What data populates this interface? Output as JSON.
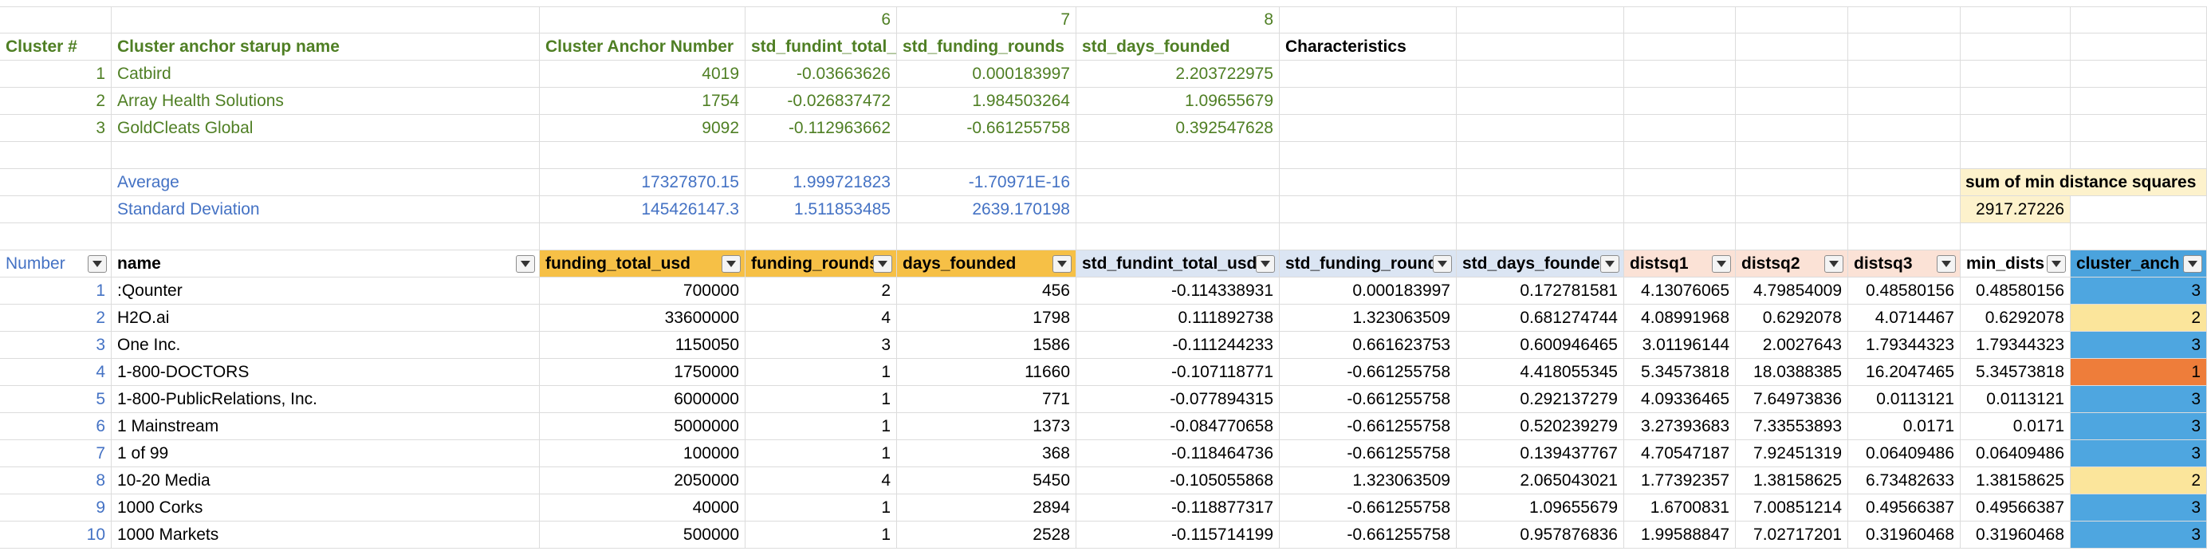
{
  "col_index_row": [
    "6",
    "7",
    "8"
  ],
  "cluster_header": {
    "cluster_no": "Cluster #",
    "anchor_name": "Cluster anchor starup name",
    "anchor_number": "Cluster Anchor Number",
    "std_funding_total": "std_fundint_total_(",
    "std_funding_rounds": "std_funding_rounds",
    "std_days_founded": "std_days_founded",
    "characteristics": "Characteristics"
  },
  "clusters": [
    {
      "no": "1",
      "name": "Catbird",
      "anchor": "4019",
      "sft": "-0.03663626",
      "sfr": "0.000183997",
      "sdf": "2.203722975"
    },
    {
      "no": "2",
      "name": "Array Health Solutions",
      "anchor": "1754",
      "sft": "-0.026837472",
      "sfr": "1.984503264",
      "sdf": "1.09655679"
    },
    {
      "no": "3",
      "name": "GoldCleats Global",
      "anchor": "9092",
      "sft": "-0.112963662",
      "sfr": "-0.661255758",
      "sdf": "0.392547628"
    }
  ],
  "stats": {
    "average_label": "Average",
    "average_values": [
      "17327870.15",
      "1.999721823",
      "-1.70971E-16"
    ],
    "std_label": "Standard Deviation",
    "std_values": [
      "145426147.3",
      "1.511853485",
      "2639.170198"
    ],
    "sum_min_label": "sum of min distance squares",
    "sum_min_value": "2917.27226"
  },
  "table_headers": [
    "Number",
    "name",
    "funding_total_usd",
    "funding_rounds",
    "days_founded",
    "std_fundint_total_usd",
    "std_funding_round",
    "std_days_founde",
    "distsq1",
    "distsq2",
    "distsq3",
    "min_dists",
    "cluster_anch"
  ],
  "rows": [
    [
      "1",
      ":Qounter",
      "700000",
      "2",
      "456",
      "-0.114338931",
      "0.000183997",
      "0.172781581",
      "4.13076065",
      "4.79854009",
      "0.48580156",
      "0.48580156",
      "3"
    ],
    [
      "2",
      "H2O.ai",
      "33600000",
      "4",
      "1798",
      "0.111892738",
      "1.323063509",
      "0.681274744",
      "4.08991968",
      "0.6292078",
      "4.0714467",
      "0.6292078",
      "2"
    ],
    [
      "3",
      "One Inc.",
      "1150050",
      "3",
      "1586",
      "-0.111244233",
      "0.661623753",
      "0.600946465",
      "3.01196144",
      "2.0027643",
      "1.79344323",
      "1.79344323",
      "3"
    ],
    [
      "4",
      "1-800-DOCTORS",
      "1750000",
      "1",
      "11660",
      "-0.107118771",
      "-0.661255758",
      "4.418055345",
      "5.34573818",
      "18.0388385",
      "16.2047465",
      "5.34573818",
      "1"
    ],
    [
      "5",
      "1-800-PublicRelations, Inc.",
      "6000000",
      "1",
      "771",
      "-0.077894315",
      "-0.661255758",
      "0.292137279",
      "4.09336465",
      "7.64973836",
      "0.0113121",
      "0.0113121",
      "3"
    ],
    [
      "6",
      "1 Mainstream",
      "5000000",
      "1",
      "1373",
      "-0.084770658",
      "-0.661255758",
      "0.520239279",
      "3.27393683",
      "7.33553893",
      "0.0171",
      "0.0171",
      "3"
    ],
    [
      "7",
      "1 of 99",
      "100000",
      "1",
      "368",
      "-0.118464736",
      "-0.661255758",
      "0.139437767",
      "4.70547187",
      "7.92451319",
      "0.06409486",
      "0.06409486",
      "3"
    ],
    [
      "8",
      "10-20 Media",
      "2050000",
      "4",
      "5450",
      "-0.105055868",
      "1.323063509",
      "2.065043021",
      "1.77392357",
      "1.38158625",
      "6.73482633",
      "1.38158625",
      "2"
    ],
    [
      "9",
      "1000 Corks",
      "40000",
      "1",
      "2894",
      "-0.118877317",
      "-0.661255758",
      "1.09655679",
      "1.6700831",
      "7.00851214",
      "0.49566387",
      "0.49566387",
      "3"
    ],
    [
      "10",
      "1000 Markets",
      "500000",
      "1",
      "2528",
      "-0.115714199",
      "-0.661255758",
      "0.957876836",
      "1.99588847",
      "7.02717201",
      "0.31960468",
      "0.31960468",
      "3"
    ]
  ],
  "cluster_fill_colors": {
    "1": "#ee7d3a",
    "2": "#fbe59b",
    "3": "#4ea6e0"
  }
}
